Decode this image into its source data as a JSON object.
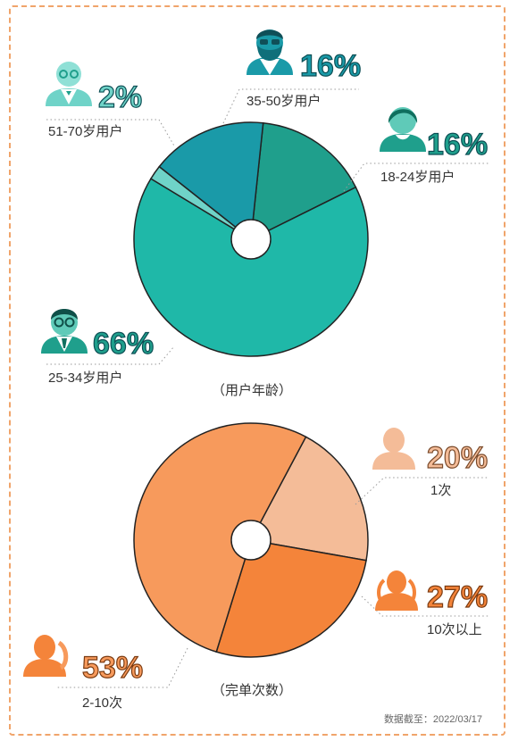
{
  "chart_data": [
    {
      "type": "pie",
      "caption": "（用户年龄）",
      "slices": [
        {
          "label": "18-24岁用户",
          "value_text": "16%",
          "value": 16,
          "color": "#1f9f8c",
          "icon": "young-person-icon"
        },
        {
          "label": "25-34岁用户",
          "value_text": "66%",
          "value": 66,
          "color": "#1fb8a8",
          "icon": "glasses-person-icon"
        },
        {
          "label": "51-70岁用户",
          "value_text": "2%",
          "value": 2,
          "color": "#6fd3c8",
          "icon": "elderly-person-icon"
        },
        {
          "label": "35-50岁用户",
          "value_text": "16%",
          "value": 16,
          "color": "#1a9aa8",
          "icon": "bearded-person-icon"
        }
      ]
    },
    {
      "type": "pie",
      "caption": "（完单次数）",
      "slices": [
        {
          "label": "1次",
          "value_text": "20%",
          "value": 20,
          "color": "#f4bc98",
          "icon": "single-person-icon"
        },
        {
          "label": "10次以上",
          "value_text": "27%",
          "value": 27,
          "color": "#f4843a",
          "icon": "group-person-icon"
        },
        {
          "label": "2-10次",
          "value_text": "53%",
          "value": 53,
          "color": "#f79a5c",
          "icon": "pair-person-icon"
        }
      ]
    }
  ],
  "note": "数据截至：2022/03/17",
  "colors": {
    "border": "#f0a46a",
    "teal_text": "#1f9f8c",
    "orange_text": "#f4843a",
    "peach_text": "#f4bc98"
  }
}
